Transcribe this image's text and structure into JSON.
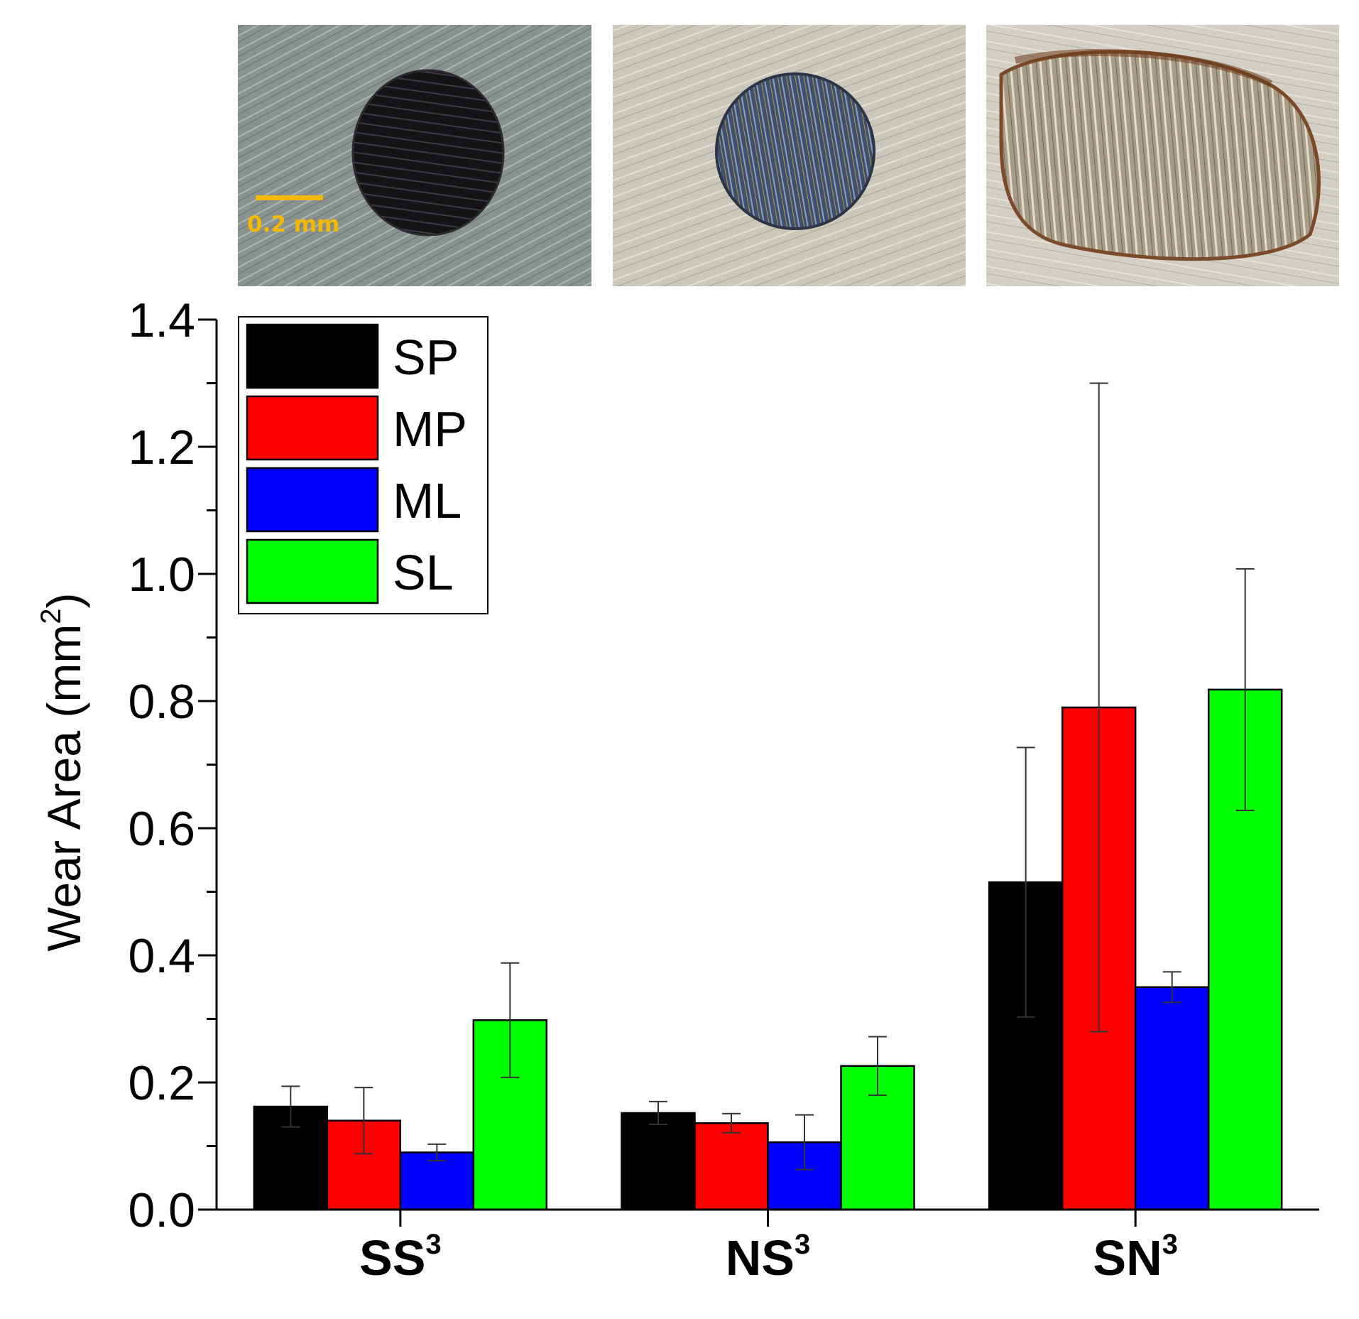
{
  "chart_data": {
    "type": "bar",
    "title": "",
    "xlabel": "",
    "ylabel": "Wear Area (mm",
    "ylabel_sup": "2",
    "ylabel_close": ")",
    "ylim": [
      0,
      1.4
    ],
    "yticks": [
      "0.0",
      "0.2",
      "0.4",
      "0.6",
      "0.8",
      "1.0",
      "1.2",
      "1.4"
    ],
    "categories": [
      {
        "name": "SS",
        "sup": "3"
      },
      {
        "name": "NS",
        "sup": "3"
      },
      {
        "name": "SN",
        "sup": "3"
      }
    ],
    "series": [
      {
        "name": "SP",
        "color": "#000000",
        "values": [
          0.162,
          0.152,
          0.515
        ],
        "errors": [
          0.032,
          0.018,
          0.212
        ]
      },
      {
        "name": "MP",
        "color": "#ff0000",
        "values": [
          0.14,
          0.136,
          0.79
        ],
        "errors": [
          0.052,
          0.015,
          0.51
        ]
      },
      {
        "name": "ML",
        "color": "#0000ff",
        "values": [
          0.09,
          0.106,
          0.35
        ],
        "errors": [
          0.013,
          0.043,
          0.024
        ]
      },
      {
        "name": "SL",
        "color": "#00ff00",
        "values": [
          0.298,
          0.226,
          0.818
        ],
        "errors": [
          0.09,
          0.046,
          0.19
        ]
      }
    ],
    "legend_position": "top-left",
    "grid": false
  },
  "micrographs": [
    {
      "label": "SS3 wear scar micrograph",
      "scale_bar_text": "0.2 mm",
      "background": "#7f8a88",
      "scar_color": "#141416"
    },
    {
      "label": "NS3 wear scar micrograph",
      "scale_bar_text": "",
      "background": "#c9c5b8",
      "scar_color": "#4a5a78"
    },
    {
      "label": "SN3 wear scar micrograph",
      "scale_bar_text": "",
      "background": "#cfcbc0",
      "scar_color": "#a39a88"
    }
  ],
  "scale_bar_color": "#f5b800"
}
